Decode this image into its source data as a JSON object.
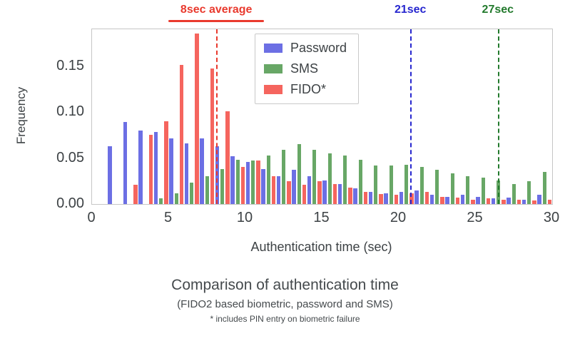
{
  "figure": {
    "caption_line1": "Comparison of authentication time",
    "caption_line2": "(FIDO2 based biometric, password and SMS)",
    "caption_line3": "* includes PIN entry on biometric failure"
  },
  "chart_data": {
    "type": "bar",
    "subtype": "grouped-histogram",
    "xlabel": "Authentication time (sec)",
    "ylabel": "Frequency",
    "xlim": [
      0,
      30
    ],
    "ylim": [
      0,
      0.19
    ],
    "x_ticks": [
      0,
      5,
      10,
      15,
      20,
      25,
      30
    ],
    "y_ticks": [
      0,
      0.05,
      0.1,
      0.15
    ],
    "grid": false,
    "legend_position": "upper-center-inside",
    "bin_start": 1,
    "bin_width": 1,
    "series": [
      {
        "name": "Password",
        "color": "#6c6fe4",
        "values": [
          0.063,
          0.089,
          0.08,
          0.078,
          0.071,
          0.066,
          0.071,
          0.063,
          0.052,
          0.046,
          0.038,
          0.03,
          0.037,
          0.03,
          0.026,
          0.022,
          0.017,
          0.013,
          0.012,
          0.013,
          0.015,
          0.01,
          0.008,
          0.01,
          0.008,
          0.006,
          0.007,
          0.005,
          0.01
        ]
      },
      {
        "name": "SMS",
        "color": "#68a766",
        "values": [
          0,
          0,
          0,
          0.006,
          0.012,
          0.023,
          0.03,
          0.038,
          0.048,
          0.047,
          0.053,
          0.059,
          0.065,
          0.059,
          0.055,
          0.053,
          0.048,
          0.042,
          0.042,
          0.043,
          0.04,
          0.037,
          0.033,
          0.03,
          0.029,
          0.026,
          0.022,
          0.025,
          0.035
        ]
      },
      {
        "name": "FIDO*",
        "color": "#f5655e",
        "values": [
          0,
          0.021,
          0.075,
          0.09,
          0.151,
          0.185,
          0.147,
          0.101,
          0.04,
          0.047,
          0.03,
          0.025,
          0.021,
          0.025,
          0.022,
          0.018,
          0.013,
          0.011,
          0.01,
          0.012,
          0.013,
          0.008,
          0.007,
          0.005,
          0.006,
          0.005,
          0.005,
          0.004,
          0.005
        ]
      }
    ],
    "vlines": [
      {
        "x": 8.15,
        "color": "#e93a2e",
        "label": "8sec average",
        "label_underline": true
      },
      {
        "x": 20.8,
        "color": "#2727cf",
        "label": "21sec",
        "label_underline": false
      },
      {
        "x": 26.5,
        "color": "#237a2d",
        "label": "27sec",
        "label_underline": false
      }
    ]
  }
}
